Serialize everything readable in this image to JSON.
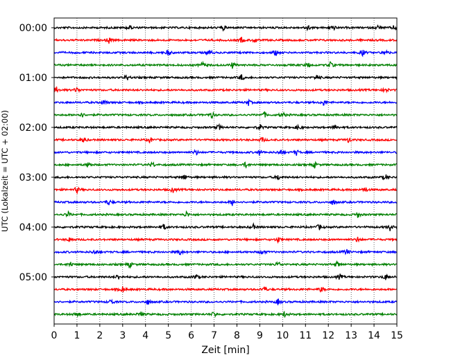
{
  "chart_data": {
    "type": "line",
    "title": "",
    "xlabel": "Zeit  [min]",
    "ylabel": "UTC (Lokalzeit = UTC + 02:00)",
    "xlim": [
      0,
      15
    ],
    "x_ticks": [
      "0",
      "1",
      "2",
      "3",
      "4",
      "5",
      "6",
      "7",
      "8",
      "9",
      "10",
      "11",
      "12",
      "13",
      "14",
      "15"
    ],
    "y_tick_labels": [
      "00:00",
      "01:00",
      "02:00",
      "03:00",
      "04:00",
      "05:00"
    ],
    "y_tick_trace_index": [
      0,
      4,
      8,
      12,
      16,
      20
    ],
    "grid": "vertical dotted at each minute",
    "minutes_per_trace": 15,
    "color_cycle": [
      "#000000",
      "#ff0000",
      "#0000ff",
      "#008000"
    ],
    "series": [
      {
        "start": "00:00",
        "events": [
          3.3,
          7.4,
          11.1,
          12.2,
          14.2,
          14.9
        ]
      },
      {
        "start": "00:15",
        "events": [
          2.4,
          8.2,
          8.8
        ]
      },
      {
        "start": "00:30",
        "events": [
          5.0,
          6.8,
          9.7,
          13.5,
          14.5
        ]
      },
      {
        "start": "00:45",
        "events": [
          6.5,
          7.8,
          11.1,
          12.1
        ]
      },
      {
        "start": "01:00",
        "events": [
          3.2,
          8.2,
          11.5
        ]
      },
      {
        "start": "01:15",
        "events": [
          0.1,
          1.0,
          14.5
        ]
      },
      {
        "start": "01:30",
        "events": [
          2.2,
          8.5,
          11.8
        ]
      },
      {
        "start": "01:45",
        "events": [
          1.2,
          6.9,
          9.2,
          10.0
        ]
      },
      {
        "start": "02:00",
        "events": [
          7.2,
          9.0,
          10.7,
          12.3
        ]
      },
      {
        "start": "02:15",
        "events": [
          1.3,
          4.2,
          9.1,
          12.9
        ]
      },
      {
        "start": "02:30",
        "events": [
          6.2,
          9.0,
          9.9,
          10.6
        ]
      },
      {
        "start": "02:45",
        "events": [
          1.5,
          4.3,
          8.4,
          11.4
        ]
      },
      {
        "start": "03:00",
        "events": [
          5.7,
          9.8,
          14.5
        ]
      },
      {
        "start": "03:15",
        "events": [
          1.0,
          5.2,
          13.6
        ]
      },
      {
        "start": "03:30",
        "events": [
          2.4,
          7.8,
          12.2
        ]
      },
      {
        "start": "03:45",
        "events": [
          0.6,
          5.8,
          13.3
        ]
      },
      {
        "start": "04:00",
        "events": [
          4.8,
          8.7,
          11.6,
          14.7
        ]
      },
      {
        "start": "04:15",
        "events": [
          0.7,
          9.8,
          13.3
        ]
      },
      {
        "start": "04:30",
        "events": [
          1.8,
          5.5,
          9.1,
          12.8
        ]
      },
      {
        "start": "04:45",
        "events": [
          0.7,
          3.3,
          9.8,
          12.4
        ]
      },
      {
        "start": "05:00",
        "events": [
          2.8,
          6.2,
          12.5,
          14.5
        ]
      },
      {
        "start": "05:15",
        "events": [
          3.0,
          9.2,
          11.7
        ]
      },
      {
        "start": "05:30",
        "events": [
          2.5,
          4.1,
          9.8
        ]
      },
      {
        "start": "05:45",
        "events": [
          1.0,
          3.8,
          7.0,
          10.1
        ]
      }
    ]
  }
}
